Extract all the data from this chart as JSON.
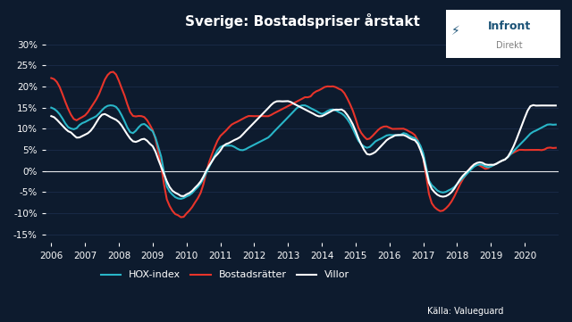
{
  "title": "Sverige: Bostadspriser årstakt",
  "background_color": "#0d1b2e",
  "plot_bg_color": "#0d1b2e",
  "grid_color": "#1e3050",
  "text_color": "#ffffff",
  "source_text": "Källa: Valueguard",
  "ylim": [
    -0.17,
    0.32
  ],
  "yticks": [
    -0.15,
    -0.1,
    -0.05,
    0.0,
    0.05,
    0.1,
    0.15,
    0.2,
    0.25,
    0.3
  ],
  "colors": {
    "hox": "#29b6c8",
    "bostadsratter": "#e8342a",
    "villor": "#ffffff"
  },
  "legend_labels": [
    "HOX-index",
    "Bostadsrätter",
    "Villor"
  ],
  "hox_data": [
    0.15,
    0.145,
    0.135,
    0.12,
    0.105,
    0.1,
    0.1,
    0.11,
    0.115,
    0.12,
    0.125,
    0.13,
    0.14,
    0.15,
    0.155,
    0.155,
    0.15,
    0.135,
    0.115,
    0.095,
    0.09,
    0.1,
    0.11,
    0.11,
    0.1,
    0.09,
    0.06,
    0.025,
    -0.03,
    -0.05,
    -0.06,
    -0.065,
    -0.065,
    -0.06,
    -0.055,
    -0.045,
    -0.035,
    -0.02,
    0.0,
    0.02,
    0.04,
    0.055,
    0.06,
    0.06,
    0.06,
    0.055,
    0.05,
    0.05,
    0.055,
    0.06,
    0.065,
    0.07,
    0.075,
    0.08,
    0.09,
    0.1,
    0.11,
    0.12,
    0.13,
    0.14,
    0.15,
    0.155,
    0.155,
    0.15,
    0.145,
    0.14,
    0.135,
    0.14,
    0.145,
    0.145,
    0.14,
    0.135,
    0.125,
    0.11,
    0.09,
    0.07,
    0.06,
    0.055,
    0.06,
    0.07,
    0.075,
    0.08,
    0.085,
    0.085,
    0.085,
    0.085,
    0.09,
    0.085,
    0.08,
    0.075,
    0.06,
    0.03,
    -0.02,
    -0.035,
    -0.045,
    -0.05,
    -0.05,
    -0.045,
    -0.04,
    -0.03,
    -0.02,
    -0.01,
    0.0,
    0.01,
    0.015,
    0.015,
    0.01,
    0.01,
    0.015,
    0.02,
    0.025,
    0.03,
    0.04,
    0.05,
    0.06,
    0.07,
    0.08,
    0.09,
    0.095,
    0.1,
    0.105,
    0.11,
    0.11,
    0.11
  ],
  "bostadsratter_data": [
    0.22,
    0.215,
    0.2,
    0.175,
    0.15,
    0.13,
    0.12,
    0.125,
    0.13,
    0.14,
    0.155,
    0.17,
    0.19,
    0.215,
    0.23,
    0.235,
    0.225,
    0.2,
    0.175,
    0.145,
    0.13,
    0.13,
    0.13,
    0.125,
    0.11,
    0.09,
    0.05,
    0.0,
    -0.06,
    -0.085,
    -0.1,
    -0.105,
    -0.11,
    -0.1,
    -0.09,
    -0.075,
    -0.06,
    -0.035,
    0.005,
    0.035,
    0.06,
    0.08,
    0.09,
    0.1,
    0.11,
    0.115,
    0.12,
    0.125,
    0.13,
    0.13,
    0.13,
    0.13,
    0.13,
    0.13,
    0.135,
    0.14,
    0.145,
    0.15,
    0.155,
    0.16,
    0.165,
    0.17,
    0.175,
    0.175,
    0.185,
    0.19,
    0.195,
    0.2,
    0.2,
    0.2,
    0.195,
    0.19,
    0.175,
    0.155,
    0.13,
    0.1,
    0.085,
    0.075,
    0.08,
    0.09,
    0.1,
    0.105,
    0.105,
    0.1,
    0.1,
    0.1,
    0.1,
    0.095,
    0.09,
    0.08,
    0.055,
    0.015,
    -0.05,
    -0.08,
    -0.09,
    -0.095,
    -0.09,
    -0.08,
    -0.065,
    -0.045,
    -0.025,
    -0.01,
    0.005,
    0.015,
    0.015,
    0.01,
    0.005,
    0.01,
    0.015,
    0.02,
    0.025,
    0.03,
    0.04,
    0.045,
    0.05,
    0.05,
    0.05,
    0.05,
    0.05,
    0.05,
    0.05,
    0.055,
    0.055,
    0.055
  ],
  "villor_data": [
    0.13,
    0.125,
    0.115,
    0.105,
    0.095,
    0.09,
    0.08,
    0.08,
    0.085,
    0.09,
    0.1,
    0.115,
    0.13,
    0.135,
    0.13,
    0.125,
    0.12,
    0.11,
    0.095,
    0.08,
    0.07,
    0.07,
    0.075,
    0.075,
    0.065,
    0.055,
    0.03,
    0.005,
    -0.02,
    -0.04,
    -0.05,
    -0.055,
    -0.06,
    -0.055,
    -0.05,
    -0.04,
    -0.03,
    -0.015,
    0.005,
    0.02,
    0.035,
    0.045,
    0.06,
    0.065,
    0.07,
    0.075,
    0.08,
    0.09,
    0.1,
    0.11,
    0.12,
    0.13,
    0.14,
    0.15,
    0.16,
    0.165,
    0.165,
    0.165,
    0.165,
    0.16,
    0.155,
    0.15,
    0.145,
    0.14,
    0.135,
    0.13,
    0.13,
    0.135,
    0.14,
    0.145,
    0.145,
    0.145,
    0.135,
    0.12,
    0.1,
    0.075,
    0.055,
    0.04,
    0.04,
    0.045,
    0.055,
    0.065,
    0.075,
    0.08,
    0.085,
    0.085,
    0.085,
    0.08,
    0.075,
    0.07,
    0.05,
    0.02,
    -0.025,
    -0.045,
    -0.055,
    -0.06,
    -0.06,
    -0.055,
    -0.045,
    -0.03,
    -0.015,
    -0.005,
    0.005,
    0.015,
    0.02,
    0.02,
    0.015,
    0.015,
    0.015,
    0.02,
    0.025,
    0.03,
    0.045,
    0.065,
    0.09,
    0.115,
    0.14,
    0.155,
    0.155,
    0.155,
    0.155,
    0.155,
    0.155,
    0.155
  ]
}
